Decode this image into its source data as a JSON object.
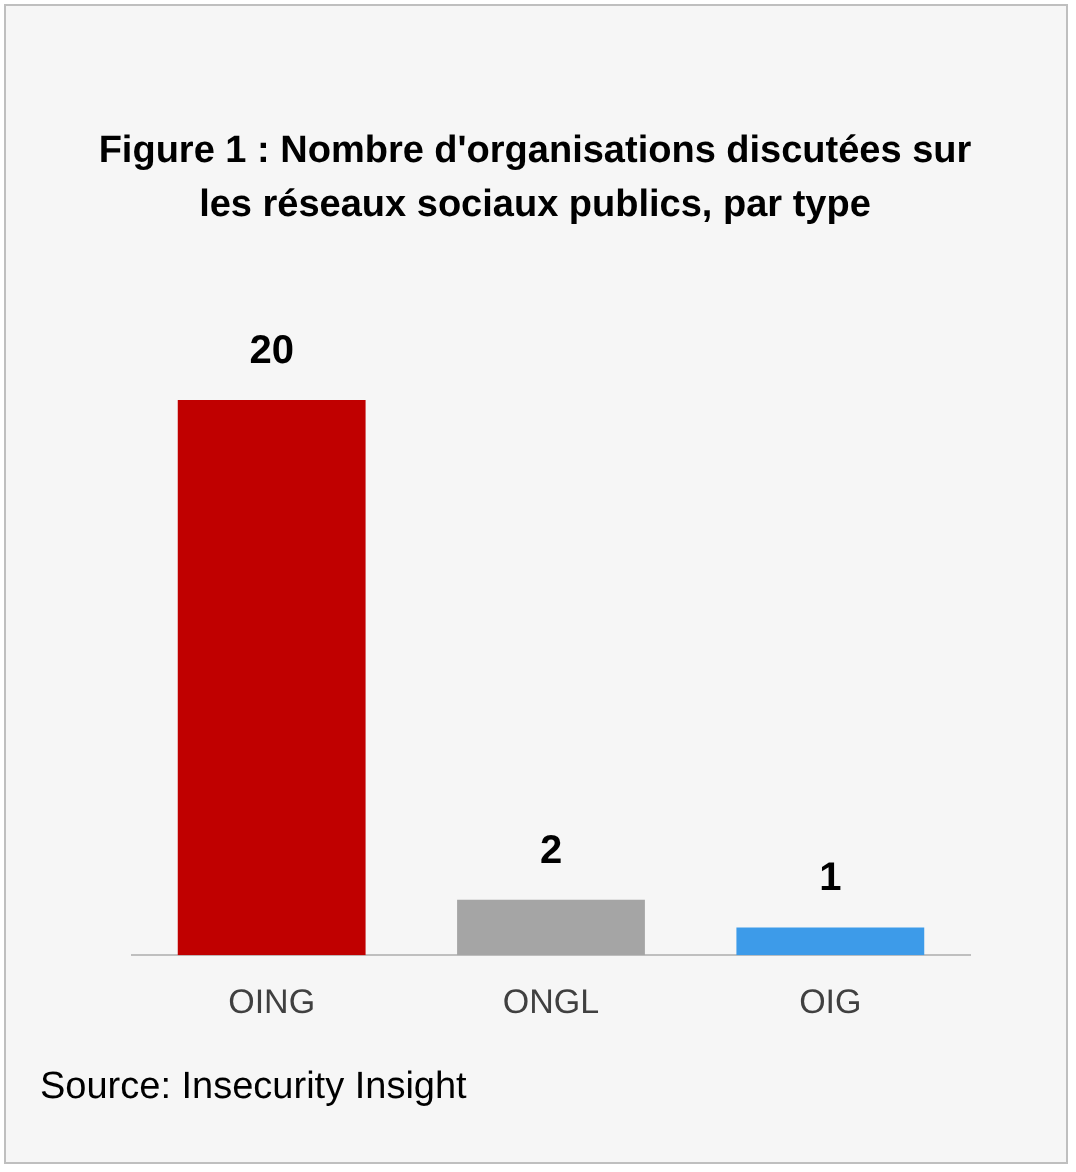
{
  "chart_data": {
    "type": "bar",
    "title": "Figure 1 : Nombre d'organisations discutées sur les réseaux sociaux publics, par type",
    "categories": [
      "OING",
      "ONGL",
      "OIG"
    ],
    "values": [
      20,
      2,
      1
    ],
    "colors": [
      "#c00000",
      "#a5a5a5",
      "#3d9be9"
    ],
    "data_labels": true,
    "grid": false,
    "legend": false,
    "annotations": [
      "Source: Insecurity Insight"
    ]
  }
}
